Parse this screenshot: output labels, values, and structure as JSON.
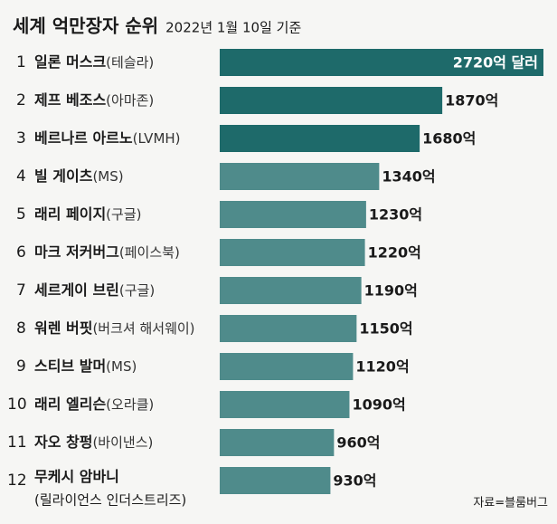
{
  "chart_data": {
    "type": "bar",
    "orientation": "horizontal",
    "title": "세계 억만장자 순위",
    "subtitle": "2022년 1월 10일 기준",
    "ranks": [
      1,
      2,
      3,
      4,
      5,
      6,
      7,
      8,
      9,
      10,
      11,
      12
    ],
    "categories": [
      "일론 머스크",
      "제프 베조스",
      "베르나르 아르노",
      "빌 게이츠",
      "래리 페이지",
      "마크 저커버그",
      "세르게이 브린",
      "워렌 버핏",
      "스티브 발머",
      "래리 엘리슨",
      "자오 창펑",
      "무케시 암바니"
    ],
    "affiliations": [
      "(테슬라)",
      "(아마존)",
      "(LVMH)",
      "(MS)",
      "(구글)",
      "(페이스북)",
      "(구글)",
      "(버크셔 해서웨이)",
      "(MS)",
      "(오라클)",
      "(바이낸스)",
      "(릴라이언스 인더스트리즈)"
    ],
    "values": [
      2720,
      1870,
      1680,
      1340,
      1230,
      1220,
      1190,
      1150,
      1120,
      1090,
      960,
      930
    ],
    "value_labels": [
      "2720억 달러",
      "1870억",
      "1680억",
      "1340억",
      "1230억",
      "1220억",
      "1190억",
      "1150억",
      "1120억",
      "1090억",
      "960억",
      "930억"
    ],
    "bar_colors": [
      "#1e6a6a",
      "#1e6a6a",
      "#1e6a6a",
      "#4f8b8b",
      "#4f8b8b",
      "#4f8b8b",
      "#4f8b8b",
      "#4f8b8b",
      "#4f8b8b",
      "#4f8b8b",
      "#4f8b8b",
      "#4f8b8b"
    ],
    "source": "자료=블룸버그"
  }
}
